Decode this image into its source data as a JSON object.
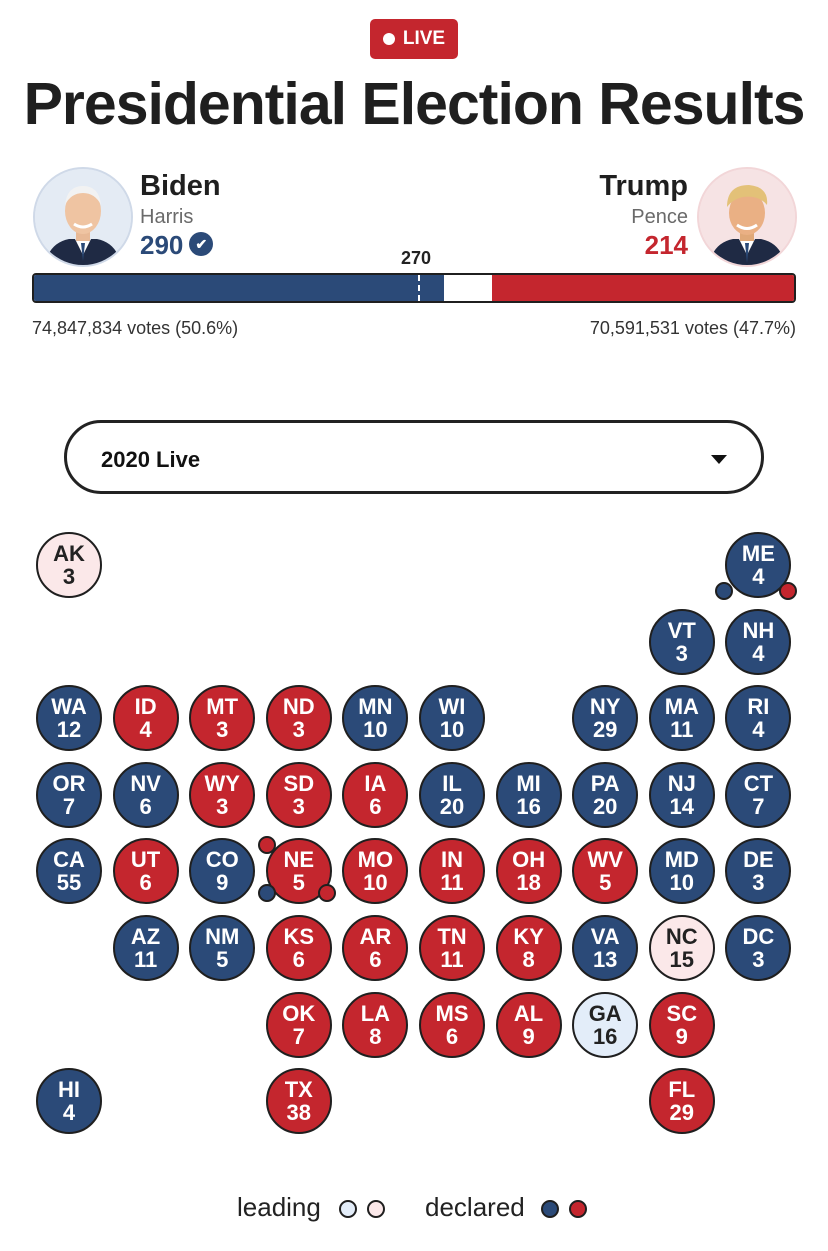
{
  "badge": {
    "label": "LIVE"
  },
  "title": "Presidential Election Results",
  "threshold": "270",
  "colors": {
    "dem": "#2b4a78",
    "rep": "#c4262e",
    "dem_lead": "#e3edf9",
    "rep_lead": "#fbe8e9"
  },
  "candidates": {
    "left": {
      "name": "Biden",
      "running_mate": "Harris",
      "electoral_votes": "290",
      "declared_icon": "check-icon",
      "votes_text": "74,847,834 votes (50.6%)"
    },
    "right": {
      "name": "Trump",
      "running_mate": "Pence",
      "electoral_votes": "214",
      "votes_text": "70,591,531 votes (47.7%)"
    }
  },
  "progress": {
    "total": 538,
    "dem": 290,
    "rep": 214
  },
  "selector": {
    "value": "2020 Live"
  },
  "legend": {
    "leading": "leading",
    "declared": "declared"
  },
  "states": [
    {
      "abbr": "AK",
      "ev": "3",
      "status": "rep-lead"
    },
    {
      "abbr": "ME",
      "ev": "4",
      "status": "dem"
    },
    {
      "abbr": "VT",
      "ev": "3",
      "status": "dem"
    },
    {
      "abbr": "NH",
      "ev": "4",
      "status": "dem"
    },
    {
      "abbr": "WA",
      "ev": "12",
      "status": "dem"
    },
    {
      "abbr": "ID",
      "ev": "4",
      "status": "rep"
    },
    {
      "abbr": "MT",
      "ev": "3",
      "status": "rep"
    },
    {
      "abbr": "ND",
      "ev": "3",
      "status": "rep"
    },
    {
      "abbr": "MN",
      "ev": "10",
      "status": "dem"
    },
    {
      "abbr": "WI",
      "ev": "10",
      "status": "dem"
    },
    {
      "abbr": "NY",
      "ev": "29",
      "status": "dem"
    },
    {
      "abbr": "MA",
      "ev": "11",
      "status": "dem"
    },
    {
      "abbr": "RI",
      "ev": "4",
      "status": "dem"
    },
    {
      "abbr": "OR",
      "ev": "7",
      "status": "dem"
    },
    {
      "abbr": "NV",
      "ev": "6",
      "status": "dem"
    },
    {
      "abbr": "WY",
      "ev": "3",
      "status": "rep"
    },
    {
      "abbr": "SD",
      "ev": "3",
      "status": "rep"
    },
    {
      "abbr": "IA",
      "ev": "6",
      "status": "rep"
    },
    {
      "abbr": "IL",
      "ev": "20",
      "status": "dem"
    },
    {
      "abbr": "MI",
      "ev": "16",
      "status": "dem"
    },
    {
      "abbr": "PA",
      "ev": "20",
      "status": "dem"
    },
    {
      "abbr": "NJ",
      "ev": "14",
      "status": "dem"
    },
    {
      "abbr": "CT",
      "ev": "7",
      "status": "dem"
    },
    {
      "abbr": "CA",
      "ev": "55",
      "status": "dem"
    },
    {
      "abbr": "UT",
      "ev": "6",
      "status": "rep"
    },
    {
      "abbr": "CO",
      "ev": "9",
      "status": "dem"
    },
    {
      "abbr": "NE",
      "ev": "5",
      "status": "rep"
    },
    {
      "abbr": "MO",
      "ev": "10",
      "status": "rep"
    },
    {
      "abbr": "IN",
      "ev": "11",
      "status": "rep"
    },
    {
      "abbr": "OH",
      "ev": "18",
      "status": "rep"
    },
    {
      "abbr": "WV",
      "ev": "5",
      "status": "rep"
    },
    {
      "abbr": "MD",
      "ev": "10",
      "status": "dem"
    },
    {
      "abbr": "DE",
      "ev": "3",
      "status": "dem"
    },
    {
      "abbr": "AZ",
      "ev": "11",
      "status": "dem"
    },
    {
      "abbr": "NM",
      "ev": "5",
      "status": "dem"
    },
    {
      "abbr": "KS",
      "ev": "6",
      "status": "rep"
    },
    {
      "abbr": "AR",
      "ev": "6",
      "status": "rep"
    },
    {
      "abbr": "TN",
      "ev": "11",
      "status": "rep"
    },
    {
      "abbr": "KY",
      "ev": "8",
      "status": "rep"
    },
    {
      "abbr": "VA",
      "ev": "13",
      "status": "dem"
    },
    {
      "abbr": "NC",
      "ev": "15",
      "status": "rep-lead"
    },
    {
      "abbr": "DC",
      "ev": "3",
      "status": "dem"
    },
    {
      "abbr": "OK",
      "ev": "7",
      "status": "rep"
    },
    {
      "abbr": "LA",
      "ev": "8",
      "status": "rep"
    },
    {
      "abbr": "MS",
      "ev": "6",
      "status": "rep"
    },
    {
      "abbr": "AL",
      "ev": "9",
      "status": "rep"
    },
    {
      "abbr": "GA",
      "ev": "16",
      "status": "dem-lead"
    },
    {
      "abbr": "SC",
      "ev": "9",
      "status": "rep"
    },
    {
      "abbr": "HI",
      "ev": "4",
      "status": "dem"
    },
    {
      "abbr": "TX",
      "ev": "38",
      "status": "rep"
    },
    {
      "abbr": "FL",
      "ev": "29",
      "status": "rep"
    }
  ],
  "district_dots": [
    {
      "state": "ME",
      "status": "dem"
    },
    {
      "state": "ME",
      "status": "rep"
    },
    {
      "state": "NE",
      "status": "rep"
    },
    {
      "state": "NE",
      "status": "dem"
    },
    {
      "state": "NE",
      "status": "rep"
    }
  ]
}
